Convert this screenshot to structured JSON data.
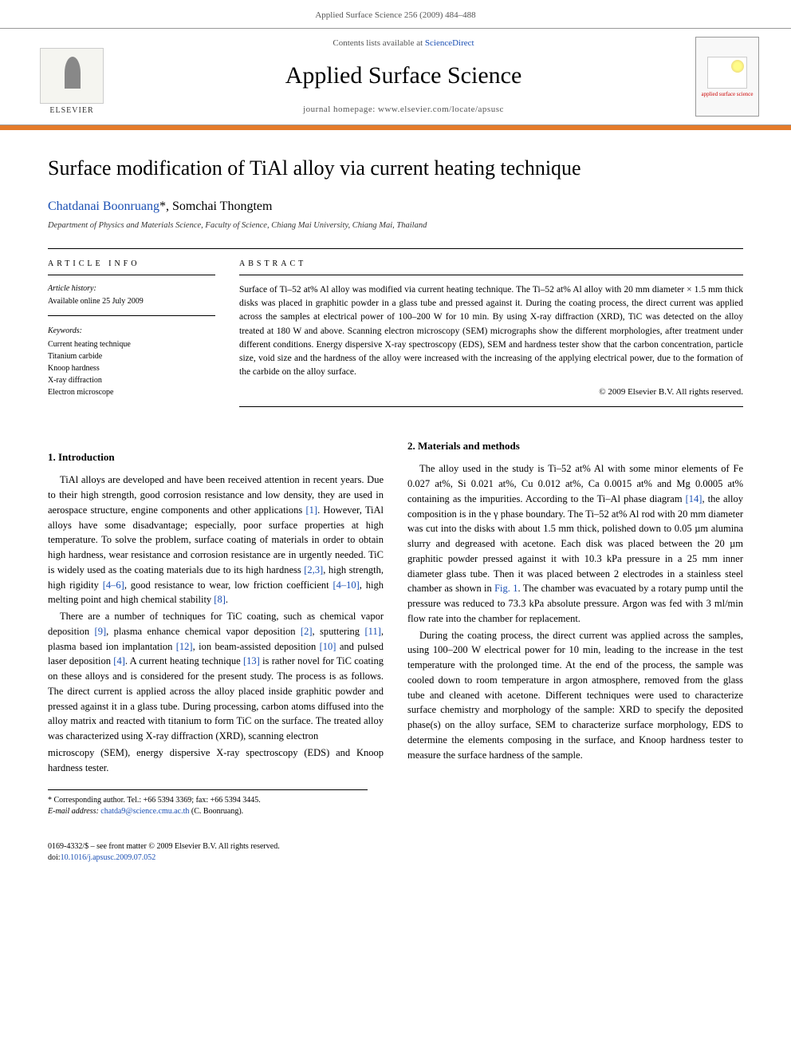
{
  "header": {
    "running_head": "Applied Surface Science 256 (2009) 484–488"
  },
  "banner": {
    "publisher": "ELSEVIER",
    "contents_prefix": "Contents lists available at ",
    "contents_link": "ScienceDirect",
    "journal": "Applied Surface Science",
    "homepage_prefix": "journal homepage: ",
    "homepage": "www.elsevier.com/locate/apsusc",
    "cover_label": "applied surface science"
  },
  "article": {
    "title": "Surface modification of TiAl alloy via current heating technique",
    "authors_html": "Chatdanai Boonruang *, Somchai Thongtem",
    "author1": "Chatdanai Boonruang",
    "author1_mark": "*",
    "author2": ", Somchai Thongtem",
    "affiliation": "Department of Physics and Materials Science, Faculty of Science, Chiang Mai University, Chiang Mai, Thailand"
  },
  "info": {
    "heading": "ARTICLE INFO",
    "history_label": "Article history:",
    "history_line": "Available online 25 July 2009",
    "keywords_label": "Keywords:",
    "keywords": [
      "Current heating technique",
      "Titanium carbide",
      "Knoop hardness",
      "X-ray diffraction",
      "Electron microscope"
    ]
  },
  "abstract": {
    "heading": "ABSTRACT",
    "text": "Surface of Ti–52 at% Al alloy was modified via current heating technique. The Ti–52 at% Al alloy with 20 mm diameter × 1.5 mm thick disks was placed in graphitic powder in a glass tube and pressed against it. During the coating process, the direct current was applied across the samples at electrical power of 100–200 W for 10 min. By using X-ray diffraction (XRD), TiC was detected on the alloy treated at 180 W and above. Scanning electron microscopy (SEM) micrographs show the different morphologies, after treatment under different conditions. Energy dispersive X-ray spectroscopy (EDS), SEM and hardness tester show that the carbon concentration, particle size, void size and the hardness of the alloy were increased with the increasing of the applying electrical power, due to the formation of the carbide on the alloy surface.",
    "copyright": "© 2009 Elsevier B.V. All rights reserved."
  },
  "sections": {
    "s1_heading": "1. Introduction",
    "s1_p1a": "TiAl alloys are developed and have been received attention in recent years. Due to their high strength, good corrosion resistance and low density, they are used in aerospace structure, engine components and other applications ",
    "s1_p1b": ". However, TiAl alloys have some disadvantage; especially, poor surface properties at high temperature. To solve the problem, surface coating of materials in order to obtain high hardness, wear resistance and corrosion resistance are in urgently needed. TiC is widely used as the coating materials due to its high hardness ",
    "s1_p1c": ", high strength, high rigidity ",
    "s1_p1d": ", good resistance to wear, low friction coefficient ",
    "s1_p1e": ", high melting point and high chemical stability ",
    "s1_p1f": ".",
    "s1_p2a": "There are a number of techniques for TiC coating, such as chemical vapor deposition ",
    "s1_p2b": ", plasma enhance chemical vapor deposition ",
    "s1_p2c": ", sputtering ",
    "s1_p2d": ", plasma based ion implantation ",
    "s1_p2e": ", ion beam-assisted deposition ",
    "s1_p2f": " and pulsed laser deposition ",
    "s1_p2g": ". A current heating technique ",
    "s1_p2h": " is rather novel for TiC coating on these alloys and is considered for the present study. The process is as follows. The direct current is applied across the alloy placed inside graphitic powder and pressed against it in a glass tube. During processing, carbon atoms diffused into the alloy matrix and reacted with titanium to form TiC on the surface. The treated alloy was characterized using X-ray diffraction (XRD), scanning electron ",
    "s1_p2_tail": "microscopy (SEM), energy dispersive X-ray spectroscopy (EDS) and Knoop hardness tester.",
    "s2_heading": "2. Materials and methods",
    "s2_p1a": "The alloy used in the study is Ti–52 at% Al with some minor elements of Fe 0.027 at%, Si 0.021 at%, Cu 0.012 at%, Ca 0.0015 at% and Mg 0.0005 at% containing as the impurities. According to the Ti–Al phase diagram ",
    "s2_p1b": ", the alloy composition is in the γ phase boundary. The Ti–52 at% Al rod with 20 mm diameter was cut into the disks with about 1.5 mm thick, polished down to 0.05 µm alumina slurry and degreased with acetone. Each disk was placed between the 20 µm graphitic powder pressed against it with 10.3 kPa pressure in a 25 mm inner diameter glass tube. Then it was placed between 2 electrodes in a stainless steel chamber as shown in ",
    "s2_p1c": ". The chamber was evacuated by a rotary pump until the pressure was reduced to 73.3 kPa absolute pressure. Argon was fed with 3 ml/min flow rate into the chamber for replacement.",
    "s2_p2": "During the coating process, the direct current was applied across the samples, using 100–200 W electrical power for 10 min, leading to the increase in the test temperature with the prolonged time. At the end of the process, the sample was cooled down to room temperature in argon atmosphere, removed from the glass tube and cleaned with acetone. Different techniques were used to characterize surface chemistry and morphology of the sample: XRD to specify the deposited phase(s) on the alloy surface, SEM to characterize surface morphology, EDS to determine the elements composing in the surface, and Knoop hardness tester to measure the surface hardness of the sample."
  },
  "refs": {
    "r1": "[1]",
    "r23": "[2,3]",
    "r46": "[4–6]",
    "r410": "[4–10]",
    "r8": "[8]",
    "r9": "[9]",
    "r2": "[2]",
    "r11": "[11]",
    "r12": "[12]",
    "r10": "[10]",
    "r4": "[4]",
    "r13": "[13]",
    "r14": "[14]",
    "fig1": "Fig. 1"
  },
  "footnotes": {
    "corr_label": "* Corresponding author. Tel.: +66 5394 3369; fax: +66 5394 3445.",
    "email_label": "E-mail address: ",
    "email": "chatda9@science.cmu.ac.th",
    "email_suffix": " (C. Boonruang)."
  },
  "footer": {
    "line1": "0169-4332/$ – see front matter © 2009 Elsevier B.V. All rights reserved.",
    "doi_prefix": "doi:",
    "doi": "10.1016/j.apsusc.2009.07.052"
  },
  "colors": {
    "link": "#1a4fb3",
    "orange": "#e47b2a"
  }
}
